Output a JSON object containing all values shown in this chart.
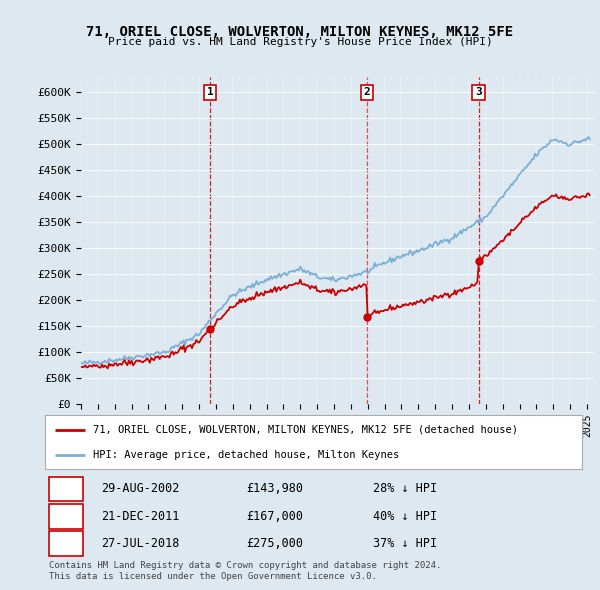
{
  "title": "71, ORIEL CLOSE, WOLVERTON, MILTON KEYNES, MK12 5FE",
  "subtitle": "Price paid vs. HM Land Registry's House Price Index (HPI)",
  "ytick_labels": [
    "£0",
    "£50K",
    "£100K",
    "£150K",
    "£200K",
    "£250K",
    "£300K",
    "£350K",
    "£400K",
    "£450K",
    "£500K",
    "£550K",
    "£600K"
  ],
  "ytick_values": [
    0,
    50000,
    100000,
    150000,
    200000,
    250000,
    300000,
    350000,
    400000,
    450000,
    500000,
    550000,
    600000
  ],
  "background_color": "#dde8f0",
  "price_paid_color": "#cc0000",
  "hpi_color": "#7bafd4",
  "vline_color": "#cc0000",
  "transactions": [
    {
      "date": "2002-08-29",
      "price": 143980,
      "label": "1"
    },
    {
      "date": "2011-12-21",
      "price": 167000,
      "label": "2"
    },
    {
      "date": "2018-07-27",
      "price": 275000,
      "label": "3"
    }
  ],
  "table_rows": [
    {
      "num": "1",
      "date": "29-AUG-2002",
      "price": "£143,980",
      "pct": "28% ↓ HPI"
    },
    {
      "num": "2",
      "date": "21-DEC-2011",
      "price": "£167,000",
      "pct": "40% ↓ HPI"
    },
    {
      "num": "3",
      "date": "27-JUL-2018",
      "price": "£275,000",
      "pct": "37% ↓ HPI"
    }
  ],
  "legend_line1": "71, ORIEL CLOSE, WOLVERTON, MILTON KEYNES, MK12 5FE (detached house)",
  "legend_line2": "HPI: Average price, detached house, Milton Keynes",
  "footnote1": "Contains HM Land Registry data © Crown copyright and database right 2024.",
  "footnote2": "This data is licensed under the Open Government Licence v3.0."
}
